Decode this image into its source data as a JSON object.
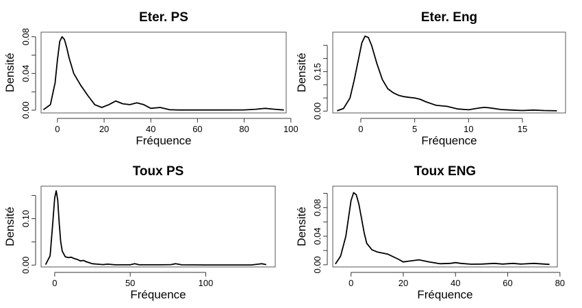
{
  "chart_data": [
    {
      "type": "line",
      "title": "Eter. PS",
      "xlabel": "Fréquence",
      "ylabel": "Densité",
      "xlim": [
        -7,
        98
      ],
      "ylim": [
        -0.003,
        0.085
      ],
      "xticks": [
        0,
        20,
        40,
        60,
        80,
        100
      ],
      "xtick_labels": [
        "0",
        "20",
        "40",
        "60",
        "80",
        "100"
      ],
      "yticks": [
        0.0,
        0.02,
        0.04,
        0.06,
        0.08
      ],
      "ytick_labels": [
        "0.00",
        "",
        "0.04",
        "",
        "0.08"
      ],
      "grid": false,
      "series": [
        {
          "x": [
            -6,
            -3,
            -1,
            0,
            1,
            2,
            3,
            4,
            5,
            7,
            10,
            13,
            16,
            19,
            22,
            25,
            28,
            31,
            34,
            37,
            40,
            44,
            48,
            52,
            60,
            70,
            80,
            85,
            89,
            93,
            97
          ],
          "values": [
            0.0005,
            0.006,
            0.03,
            0.055,
            0.075,
            0.08,
            0.077,
            0.068,
            0.057,
            0.04,
            0.027,
            0.016,
            0.006,
            0.003,
            0.006,
            0.01,
            0.007,
            0.006,
            0.008,
            0.006,
            0.002,
            0.003,
            0.0005,
            0.0002,
            0.0002,
            0.0002,
            0.0003,
            0.001,
            0.002,
            0.001,
            0.0002
          ]
        }
      ]
    },
    {
      "type": "line",
      "title": "Eter. Eng",
      "xlabel": "Fréquence",
      "ylabel": "Densité",
      "xlim": [
        -2.6,
        19
      ],
      "ylim": [
        -0.007,
        0.3
      ],
      "xticks": [
        0,
        5,
        10,
        15
      ],
      "xtick_labels": [
        "0",
        "5",
        "10",
        "15"
      ],
      "yticks": [
        0.0,
        0.05,
        0.1,
        0.15,
        0.2,
        0.25
      ],
      "ytick_labels": [
        "0.00",
        "",
        "",
        "0.15",
        "",
        ""
      ],
      "grid": false,
      "series": [
        {
          "x": [
            -2.2,
            -1.6,
            -1,
            -0.6,
            -0.2,
            0.1,
            0.4,
            0.7,
            1,
            1.5,
            2,
            2.5,
            3,
            3.5,
            4,
            4.5,
            5,
            5.5,
            6,
            7,
            8,
            9,
            10,
            11,
            11.5,
            12,
            13,
            14,
            15,
            16,
            17,
            18.2
          ],
          "values": [
            0.001,
            0.01,
            0.05,
            0.12,
            0.2,
            0.26,
            0.285,
            0.28,
            0.25,
            0.18,
            0.12,
            0.085,
            0.07,
            0.06,
            0.055,
            0.052,
            0.05,
            0.045,
            0.036,
            0.022,
            0.018,
            0.008,
            0.005,
            0.012,
            0.014,
            0.012,
            0.006,
            0.004,
            0.002,
            0.004,
            0.002,
            0.001
          ]
        }
      ]
    },
    {
      "type": "line",
      "title": "Toux PS",
      "xlabel": "Fréquence",
      "ylabel": "Densité",
      "xlim": [
        -9,
        146
      ],
      "ylim": [
        -0.004,
        0.17
      ],
      "xticks": [
        0,
        50,
        100
      ],
      "xtick_labels": [
        "0",
        "50",
        "100"
      ],
      "yticks": [
        0.0,
        0.05,
        0.1,
        0.15
      ],
      "ytick_labels": [
        "0.00",
        "",
        "0.10",
        ""
      ],
      "grid": false,
      "series": [
        {
          "x": [
            -6,
            -3,
            -1.5,
            0,
            1,
            2,
            3,
            4,
            5,
            7,
            9,
            11,
            13,
            15,
            17,
            19,
            21,
            25,
            28,
            32,
            35,
            40,
            50,
            53,
            56,
            70,
            77,
            80,
            84,
            100,
            130,
            135,
            137,
            140
          ],
          "values": [
            0.001,
            0.02,
            0.08,
            0.145,
            0.16,
            0.14,
            0.09,
            0.05,
            0.03,
            0.018,
            0.016,
            0.017,
            0.014,
            0.012,
            0.009,
            0.01,
            0.007,
            0.003,
            0.002,
            0.001,
            0.002,
            0.0005,
            0.0005,
            0.003,
            0.0005,
            0.0005,
            0.001,
            0.003,
            0.0005,
            0.0003,
            0.0003,
            0.002,
            0.003,
            0.001
          ]
        }
      ]
    },
    {
      "type": "line",
      "title": "Toux ENG",
      "xlabel": "Fréquence",
      "ylabel": "Densité",
      "xlim": [
        -7,
        79
      ],
      "ylim": [
        -0.003,
        0.11
      ],
      "xticks": [
        0,
        20,
        40,
        60,
        80
      ],
      "xtick_labels": [
        "0",
        "20",
        "40",
        "60",
        "80"
      ],
      "yticks": [
        0.0,
        0.02,
        0.04,
        0.06,
        0.08,
        0.1
      ],
      "ytick_labels": [
        "0.00",
        "",
        "0.04",
        "",
        "0.08",
        ""
      ],
      "grid": false,
      "series": [
        {
          "x": [
            -6,
            -4,
            -2,
            -1,
            0,
            1,
            2,
            3,
            4,
            5,
            6,
            8,
            10,
            14,
            18,
            20,
            22,
            26,
            30,
            34,
            38,
            40,
            42,
            46,
            50,
            55,
            58,
            62,
            65,
            70,
            76
          ],
          "values": [
            0.001,
            0.012,
            0.04,
            0.065,
            0.09,
            0.101,
            0.098,
            0.085,
            0.065,
            0.045,
            0.03,
            0.021,
            0.018,
            0.015,
            0.008,
            0.004,
            0.005,
            0.007,
            0.004,
            0.0015,
            0.002,
            0.003,
            0.002,
            0.0008,
            0.001,
            0.002,
            0.001,
            0.002,
            0.001,
            0.002,
            0.0005
          ]
        }
      ]
    }
  ]
}
